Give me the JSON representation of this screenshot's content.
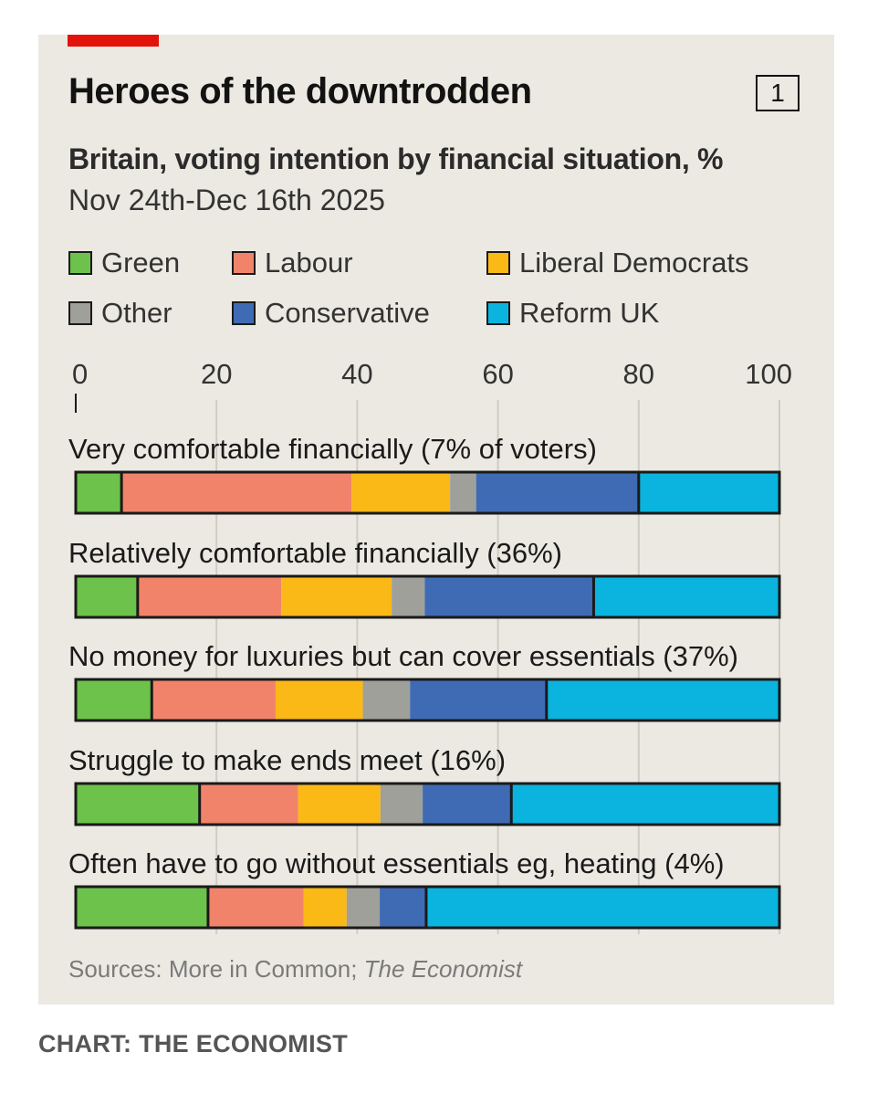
{
  "header": {
    "title": "Heroes of the downtrodden",
    "chart_number": "1",
    "subtitle": "Britain, voting intention by financial situation, %",
    "dates": "Nov 24th-Dec 16th 2025"
  },
  "footer": {
    "source_prefix": "Sources: More in Common; ",
    "source_italic": "The Economist",
    "credit": "CHART: THE ECONOMIST"
  },
  "colors": {
    "Green": "#6cc24a",
    "Labour": "#f2836b",
    "Liberal Democrats": "#fbb917",
    "Other": "#a0a09a",
    "Conservative": "#3f6bb5",
    "Reform UK": "#0ab4de",
    "gridline": "#cfccc3",
    "panel": "#ebe9e1"
  },
  "legend": [
    {
      "name": "Green",
      "color": "#6cc24a"
    },
    {
      "name": "Labour",
      "color": "#f2836b"
    },
    {
      "name": "Liberal Democrats",
      "color": "#fbb917"
    },
    {
      "name": "Other",
      "color": "#a0a09a"
    },
    {
      "name": "Conservative",
      "color": "#3f6bb5"
    },
    {
      "name": "Reform UK",
      "color": "#0ab4de"
    }
  ],
  "chart_data": {
    "type": "bar",
    "orientation": "horizontal",
    "stacked": true,
    "title": "Heroes of the downtrodden",
    "xlabel": "",
    "ylabel": "",
    "xlim": [
      0,
      100
    ],
    "xticks": [
      0,
      20,
      40,
      60,
      80,
      100
    ],
    "grid": true,
    "categories": [
      "Very comfortable financially (7% of voters)",
      "Relatively comfortable financially (36%)",
      "No money for luxuries but can cover essentials (37%)",
      "Struggle to make ends meet (16%)",
      "Often have to go without essentials eg, heating (4%)"
    ],
    "series": [
      {
        "name": "Green",
        "values": [
          6.5,
          8.8,
          10.8,
          17.6,
          18.8
        ]
      },
      {
        "name": "Labour",
        "values": [
          32.7,
          20.4,
          17.6,
          14.0,
          13.6
        ]
      },
      {
        "name": "Liberal Democrats",
        "values": [
          14.0,
          15.7,
          12.4,
          11.7,
          6.1
        ]
      },
      {
        "name": "Other",
        "values": [
          3.7,
          4.7,
          6.7,
          6.0,
          4.7
        ]
      },
      {
        "name": "Conservative",
        "values": [
          23.1,
          24.0,
          19.4,
          12.6,
          6.6
        ]
      },
      {
        "name": "Reform UK",
        "values": [
          20.0,
          26.4,
          33.1,
          38.1,
          50.2
        ]
      }
    ]
  }
}
